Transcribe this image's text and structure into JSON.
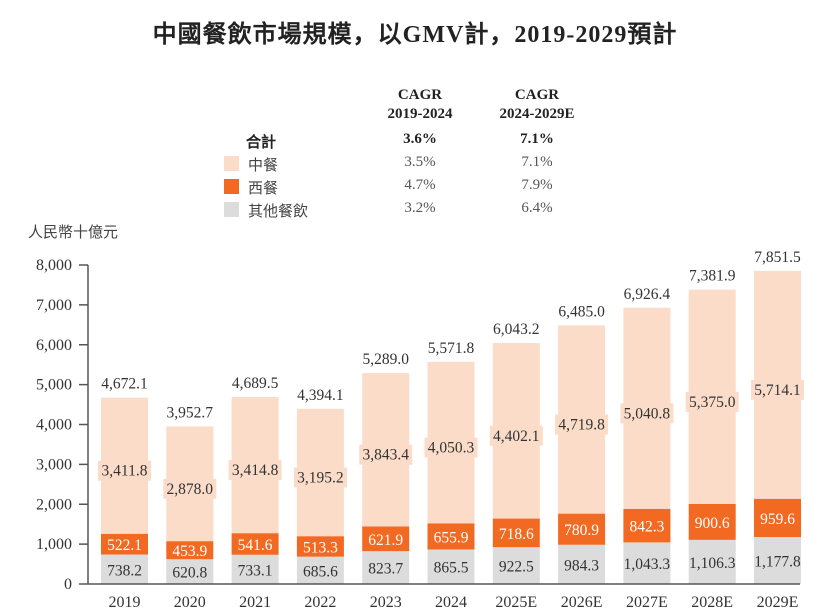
{
  "title": {
    "prefix": "中國餐飲市場規模，以",
    "latin1": "GMV",
    "mid": "計，",
    "latin2": "2019-2029",
    "suffix": "預計"
  },
  "legend": {
    "col1_header": [
      "CAGR",
      "2019-2024"
    ],
    "col2_header": [
      "CAGR",
      "2024-2029E"
    ],
    "rows": [
      {
        "label": "合計",
        "cagr1": "3.6%",
        "cagr2": "7.1%",
        "swatch": null,
        "bold": true
      },
      {
        "label": "中餐",
        "cagr1": "3.5%",
        "cagr2": "7.1%",
        "swatch": "#fbdcc8"
      },
      {
        "label": "西餐",
        "cagr1": "4.7%",
        "cagr2": "7.9%",
        "swatch": "#f26a22"
      },
      {
        "label": "其他餐飲",
        "cagr1": "3.2%",
        "cagr2": "6.4%",
        "swatch": "#dcdcdc"
      }
    ]
  },
  "chart_data": {
    "type": "bar",
    "stacked": true,
    "title": "中國餐飲市場規模，以GMV計，2019-2029預計",
    "ylabel": "人民幣十億元",
    "xlabel": "",
    "ylim": [
      0,
      8000
    ],
    "yticks": [
      0,
      1000,
      2000,
      3000,
      4000,
      5000,
      6000,
      7000,
      8000
    ],
    "ytick_labels": [
      "0",
      "1,000",
      "2,000",
      "3,000",
      "4,000",
      "5,000",
      "6,000",
      "7,000",
      "8,000"
    ],
    "grid": false,
    "legend_position": "top-center",
    "categories": [
      "2019",
      "2020",
      "2021",
      "2022",
      "2023",
      "2024",
      "2025E",
      "2026E",
      "2027E",
      "2028E",
      "2029E"
    ],
    "series": [
      {
        "name": "其他餐飲",
        "color": "#dcdcdc",
        "label_color": "#333333",
        "values": [
          738.2,
          620.8,
          733.1,
          685.6,
          823.7,
          865.5,
          922.5,
          984.3,
          1043.3,
          1106.3,
          1177.8
        ],
        "labels": [
          "738.2",
          "620.8",
          "733.1",
          "685.6",
          "823.7",
          "865.5",
          "922.5",
          "984.3",
          "1,043.3",
          "1,106.3",
          "1,177.8"
        ]
      },
      {
        "name": "西餐",
        "color": "#f26a22",
        "label_color": "#ffffff",
        "values": [
          522.1,
          453.9,
          541.6,
          513.3,
          621.9,
          655.9,
          718.6,
          780.9,
          842.3,
          900.6,
          959.6
        ],
        "labels": [
          "522.1",
          "453.9",
          "541.6",
          "513.3",
          "621.9",
          "655.9",
          "718.6",
          "780.9",
          "842.3",
          "900.6",
          "959.6"
        ]
      },
      {
        "name": "中餐",
        "color": "#fbdcc8",
        "label_color": "#333333",
        "values": [
          3411.8,
          2878.0,
          3414.8,
          3195.2,
          3843.4,
          4050.3,
          4402.1,
          4719.8,
          5040.8,
          5375.0,
          5714.1
        ],
        "labels": [
          "3,411.8",
          "2,878.0",
          "3,414.8",
          "3,195.2",
          "3,843.4",
          "4,050.3",
          "4,402.1",
          "4,719.8",
          "5,040.8",
          "5,375.0",
          "5,714.1"
        ]
      }
    ],
    "totals": [
      4672.1,
      3952.7,
      4689.5,
      4394.1,
      5289.0,
      5571.8,
      6043.2,
      6485.0,
      6926.4,
      7381.9,
      7851.5
    ],
    "total_labels": [
      "4,672.1",
      "3,952.7",
      "4,689.5",
      "4,394.1",
      "5,289.0",
      "5,571.8",
      "6,043.2",
      "6,485.0",
      "6,926.4",
      "7,381.9",
      "7,851.5"
    ]
  }
}
